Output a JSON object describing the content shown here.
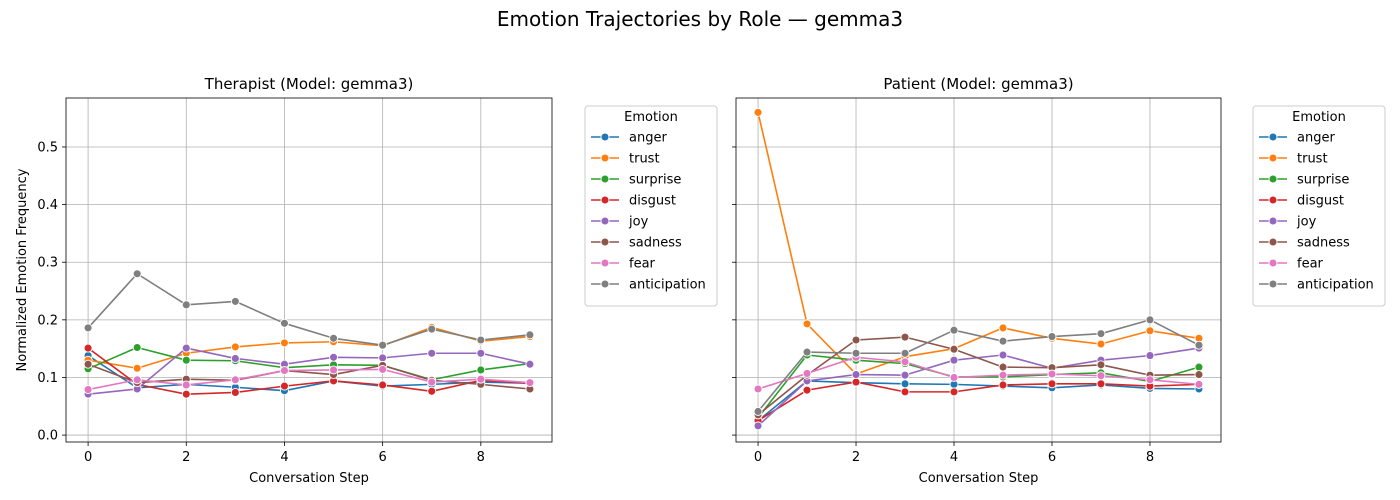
{
  "suptitle": "Emotion Trajectories by Role — gemma3",
  "ylabel": "Normalized Emotion Frequency",
  "legend_title": "Emotion",
  "chart_data": [
    {
      "type": "line",
      "title": "Therapist (Model: gemma3)",
      "xlabel": "Conversation Step",
      "ylabel": "Normalized Emotion Frequency",
      "xlim": [
        -0.45,
        9.45
      ],
      "ylim": [
        -0.012,
        0.585
      ],
      "xticks": [
        0,
        2,
        4,
        6,
        8
      ],
      "yticks": [
        0.0,
        0.1,
        0.2,
        0.3,
        0.4,
        0.5
      ],
      "grid": true,
      "legend_position": "outside-right",
      "x": [
        0,
        1,
        2,
        3,
        4,
        5,
        6,
        7,
        8,
        9
      ],
      "series": [
        {
          "name": "anger",
          "color": "#1f77b4",
          "values": [
            0.138,
            0.082,
            0.088,
            0.083,
            0.077,
            0.094,
            0.085,
            0.088,
            0.092,
            0.09
          ]
        },
        {
          "name": "trust",
          "color": "#ff7f0e",
          "values": [
            0.13,
            0.116,
            0.142,
            0.153,
            0.16,
            0.162,
            0.155,
            0.187,
            0.163,
            0.171
          ]
        },
        {
          "name": "surprise",
          "color": "#2ca02c",
          "values": [
            0.115,
            0.152,
            0.13,
            0.129,
            0.117,
            0.122,
            0.121,
            0.096,
            0.113,
            0.124
          ]
        },
        {
          "name": "disgust",
          "color": "#d62728",
          "values": [
            0.151,
            0.088,
            0.071,
            0.074,
            0.085,
            0.094,
            0.087,
            0.076,
            0.095,
            0.09
          ]
        },
        {
          "name": "joy",
          "color": "#9467bd",
          "values": [
            0.071,
            0.08,
            0.151,
            0.133,
            0.123,
            0.135,
            0.134,
            0.142,
            0.142,
            0.123
          ]
        },
        {
          "name": "sadness",
          "color": "#8c564b",
          "values": [
            0.123,
            0.091,
            0.097,
            0.095,
            0.112,
            0.105,
            0.121,
            0.095,
            0.088,
            0.08
          ]
        },
        {
          "name": "fear",
          "color": "#e377c2",
          "values": [
            0.079,
            0.096,
            0.087,
            0.096,
            0.112,
            0.113,
            0.114,
            0.092,
            0.097,
            0.091
          ]
        },
        {
          "name": "anticipation",
          "color": "#7f7f7f",
          "values": [
            0.186,
            0.28,
            0.226,
            0.232,
            0.194,
            0.168,
            0.156,
            0.184,
            0.165,
            0.174
          ]
        }
      ]
    },
    {
      "type": "line",
      "title": "Patient (Model: gemma3)",
      "xlabel": "Conversation Step",
      "ylabel": "",
      "xlim": [
        -0.45,
        9.45
      ],
      "ylim": [
        -0.012,
        0.585
      ],
      "xticks": [
        0,
        2,
        4,
        6,
        8
      ],
      "yticks": [
        0.0,
        0.1,
        0.2,
        0.3,
        0.4,
        0.5
      ],
      "grid": true,
      "legend_position": "outside-right",
      "x": [
        0,
        1,
        2,
        3,
        4,
        5,
        6,
        7,
        8,
        9
      ],
      "series": [
        {
          "name": "anger",
          "color": "#1f77b4",
          "values": [
            0.025,
            0.094,
            0.091,
            0.089,
            0.088,
            0.085,
            0.082,
            0.087,
            0.081,
            0.08
          ]
        },
        {
          "name": "trust",
          "color": "#ff7f0e",
          "values": [
            0.56,
            0.193,
            0.106,
            0.136,
            0.15,
            0.186,
            0.168,
            0.158,
            0.181,
            0.168
          ]
        },
        {
          "name": "surprise",
          "color": "#2ca02c",
          "values": [
            0.03,
            0.139,
            0.13,
            0.124,
            0.101,
            0.101,
            0.105,
            0.108,
            0.093,
            0.118
          ]
        },
        {
          "name": "disgust",
          "color": "#d62728",
          "values": [
            0.025,
            0.078,
            0.092,
            0.075,
            0.075,
            0.087,
            0.089,
            0.089,
            0.085,
            0.088
          ]
        },
        {
          "name": "joy",
          "color": "#9467bd",
          "values": [
            0.016,
            0.094,
            0.105,
            0.104,
            0.13,
            0.139,
            0.116,
            0.13,
            0.138,
            0.151
          ]
        },
        {
          "name": "sadness",
          "color": "#8c564b",
          "values": [
            0.035,
            0.104,
            0.165,
            0.17,
            0.149,
            0.118,
            0.117,
            0.122,
            0.104,
            0.105
          ]
        },
        {
          "name": "fear",
          "color": "#e377c2",
          "values": [
            0.08,
            0.107,
            0.135,
            0.127,
            0.1,
            0.104,
            0.106,
            0.103,
            0.096,
            0.088
          ]
        },
        {
          "name": "anticipation",
          "color": "#7f7f7f",
          "values": [
            0.041,
            0.144,
            0.142,
            0.142,
            0.182,
            0.163,
            0.171,
            0.176,
            0.2,
            0.156
          ]
        }
      ]
    }
  ]
}
